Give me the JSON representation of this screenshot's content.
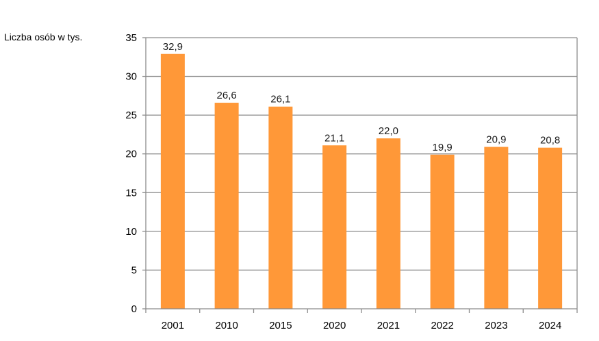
{
  "chart_data": {
    "type": "bar",
    "title": "",
    "xlabel": "",
    "ylabel": "Liczba osób w tys.",
    "categories": [
      "2001",
      "2010",
      "2015",
      "2020",
      "2021",
      "2022",
      "2023",
      "2024"
    ],
    "values": [
      32.9,
      26.6,
      26.1,
      21.1,
      22.0,
      19.9,
      20.9,
      20.8
    ],
    "value_labels": [
      "32,9",
      "26,6",
      "26,1",
      "21,1",
      "22,0",
      "19,9",
      "20,9",
      "20,8"
    ],
    "ylim": [
      0,
      35
    ],
    "yticks": [
      0,
      5,
      10,
      15,
      20,
      25,
      30,
      35
    ],
    "grid": true,
    "bar_color": "#FF9838",
    "grid_color": "#8C8C8C"
  }
}
